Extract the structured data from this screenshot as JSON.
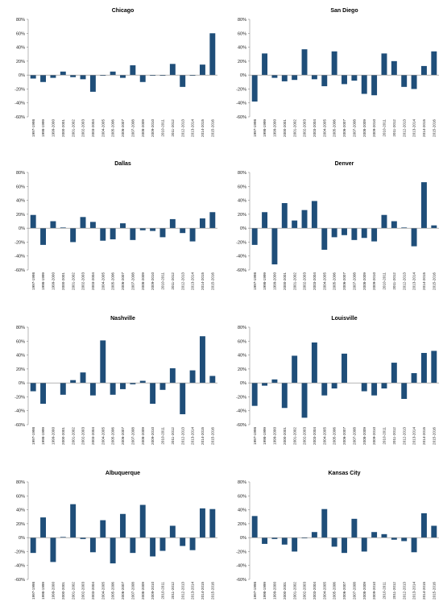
{
  "chart_data": [
    {
      "type": "bar",
      "title": "Chicago",
      "color": "#1f4e79",
      "categories": [
        "1997-1998",
        "1998-1999",
        "1999-2000",
        "2000-2001",
        "2001-2002",
        "2002-2003",
        "2003-2004",
        "2004-2005",
        "2005-2006",
        "2006-2007",
        "2007-2008",
        "2008-2009",
        "2009-2010",
        "2010-2011",
        "2011-2012",
        "2012-2013",
        "2013-2014",
        "2014-2015",
        "2015-2016"
      ],
      "values": [
        -5,
        -10,
        -4,
        5,
        -3,
        -6,
        -24,
        -1,
        5,
        -4,
        14,
        -10,
        -1,
        -1,
        16,
        -17,
        -1,
        15,
        60
      ],
      "ylim": [
        -60,
        80
      ],
      "yticks": [
        {
          "value": -60,
          "label": "-60%"
        },
        {
          "value": -40,
          "label": "-40%"
        },
        {
          "value": -20,
          "label": "-20%"
        },
        {
          "value": 0,
          "label": "0%"
        },
        {
          "value": 20,
          "label": "20%"
        },
        {
          "value": 40,
          "label": "40%"
        },
        {
          "value": 60,
          "label": "60%"
        },
        {
          "value": 80,
          "label": "80%"
        }
      ]
    },
    {
      "type": "bar",
      "title": "San Diego",
      "color": "#1f4e79",
      "categories": [
        "1997-1998",
        "1998-1999",
        "1999-2000",
        "2000-2001",
        "2001-2002",
        "2002-2003",
        "2003-2004",
        "2004-2005",
        "2005-2006",
        "2006-2007",
        "2007-2008",
        "2008-2009",
        "2009-2010",
        "2010-2011",
        "2011-2012",
        "2012-2013",
        "2013-2014",
        "2014-2015",
        "2015-2016"
      ],
      "values": [
        -38,
        31,
        -4,
        -9,
        -7,
        37,
        -6,
        -16,
        34,
        -13,
        -8,
        -27,
        -29,
        31,
        20,
        -17,
        -20,
        13,
        34
      ],
      "ylim": [
        -60,
        80
      ],
      "yticks": [
        {
          "value": -60,
          "label": "-60%"
        },
        {
          "value": -40,
          "label": "-40%"
        },
        {
          "value": -20,
          "label": "-20%"
        },
        {
          "value": 0,
          "label": "0%"
        },
        {
          "value": 20,
          "label": "20%"
        },
        {
          "value": 40,
          "label": "40%"
        },
        {
          "value": 60,
          "label": "60%"
        },
        {
          "value": 80,
          "label": "80%"
        }
      ]
    },
    {
      "type": "bar",
      "title": "Dallas",
      "color": "#1f4e79",
      "categories": [
        "1997-1998",
        "1998-1999",
        "1999-2000",
        "2000-2001",
        "2001-2002",
        "2002-2003",
        "2003-2004",
        "2004-2005",
        "2005-2006",
        "2006-2007",
        "2007-2008",
        "2008-2009",
        "2009-2010",
        "2010-2011",
        "2011-2012",
        "2012-2013",
        "2013-2014",
        "2014-2015",
        "2015-2016"
      ],
      "values": [
        19,
        -24,
        10,
        1,
        -20,
        16,
        9,
        -18,
        -16,
        7,
        -17,
        -3,
        -4,
        -13,
        13,
        -7,
        -19,
        14,
        23
      ],
      "ylim": [
        -60,
        80
      ],
      "yticks": [
        {
          "value": -60,
          "label": "-60%"
        },
        {
          "value": -40,
          "label": "-40%"
        },
        {
          "value": -20,
          "label": "-20%"
        },
        {
          "value": 0,
          "label": "0%"
        },
        {
          "value": 20,
          "label": "20%"
        },
        {
          "value": 40,
          "label": "40%"
        },
        {
          "value": 60,
          "label": "60%"
        },
        {
          "value": 80,
          "label": "80%"
        }
      ]
    },
    {
      "type": "bar",
      "title": "Denver",
      "color": "#1f4e79",
      "categories": [
        "1997-1998",
        "1998-1999",
        "1999-2000",
        "2000-2001",
        "2001-2002",
        "2002-2003",
        "2003-2004",
        "2004-2005",
        "2005-2006",
        "2006-2007",
        "2007-2008",
        "2008-2009",
        "2009-2010",
        "2010-2011",
        "2011-2012",
        "2012-2013",
        "2013-2014",
        "2014-2015",
        "2015-2016"
      ],
      "values": [
        -24,
        23,
        -52,
        36,
        11,
        26,
        39,
        -31,
        -13,
        -10,
        -17,
        -14,
        -19,
        19,
        10,
        1,
        -26,
        66,
        4
      ],
      "ylim": [
        -60,
        80
      ],
      "yticks": [
        {
          "value": -60,
          "label": "-60%"
        },
        {
          "value": -40,
          "label": "-40%"
        },
        {
          "value": -20,
          "label": "-20%"
        },
        {
          "value": 0,
          "label": "0%"
        },
        {
          "value": 20,
          "label": "20%"
        },
        {
          "value": 40,
          "label": "40%"
        },
        {
          "value": 60,
          "label": "60%"
        },
        {
          "value": 80,
          "label": "80%"
        }
      ]
    },
    {
      "type": "bar",
      "title": "Nashville",
      "color": "#1f4e79",
      "categories": [
        "1997-1998",
        "1998-1999",
        "1999-2000",
        "2000-2001",
        "2001-2002",
        "2002-2003",
        "2003-2004",
        "2004-2005",
        "2005-2006",
        "2006-2007",
        "2007-2008",
        "2008-2009",
        "2009-2010",
        "2010-2011",
        "2011-2012",
        "2012-2013",
        "2013-2014",
        "2014-2015",
        "2015-2016"
      ],
      "values": [
        -12,
        -30,
        0,
        -17,
        4,
        15,
        -18,
        61,
        -17,
        -9,
        -2,
        3,
        -30,
        -10,
        21,
        -45,
        18,
        67,
        10
      ],
      "ylim": [
        -60,
        80
      ],
      "yticks": [
        {
          "value": -60,
          "label": "-60%"
        },
        {
          "value": -40,
          "label": "-40%"
        },
        {
          "value": -20,
          "label": "-20%"
        },
        {
          "value": 0,
          "label": "0%"
        },
        {
          "value": 20,
          "label": "20%"
        },
        {
          "value": 40,
          "label": "40%"
        },
        {
          "value": 60,
          "label": "60%"
        },
        {
          "value": 80,
          "label": "80%"
        }
      ]
    },
    {
      "type": "bar",
      "title": "Louisville",
      "color": "#1f4e79",
      "categories": [
        "1997-1998",
        "1998-1999",
        "1999-2000",
        "2000-2001",
        "2001-2002",
        "2002-2003",
        "2003-2004",
        "2004-2005",
        "2005-2006",
        "2006-2007",
        "2007-2008",
        "2008-2009",
        "2009-2010",
        "2010-2011",
        "2011-2012",
        "2012-2013",
        "2013-2014",
        "2014-2015",
        "2015-2016"
      ],
      "values": [
        -33,
        -4,
        5,
        -36,
        39,
        -50,
        58,
        -18,
        -8,
        42,
        0,
        -12,
        -18,
        -8,
        29,
        -23,
        14,
        43,
        46
      ],
      "ylim": [
        -60,
        80
      ],
      "yticks": [
        {
          "value": -60,
          "label": "-60%"
        },
        {
          "value": -40,
          "label": "-40%"
        },
        {
          "value": -20,
          "label": "-20%"
        },
        {
          "value": 0,
          "label": "0%"
        },
        {
          "value": 20,
          "label": "20%"
        },
        {
          "value": 40,
          "label": "40%"
        },
        {
          "value": 60,
          "label": "60%"
        },
        {
          "value": 80,
          "label": "80%"
        }
      ]
    },
    {
      "type": "bar",
      "title": "Albuquerque",
      "color": "#1f4e79",
      "categories": [
        "1997-1998",
        "1998-1999",
        "1999-2000",
        "2000-2001",
        "2001-2002",
        "2002-2003",
        "2003-2004",
        "2004-2005",
        "2005-2006",
        "2006-2007",
        "2007-2008",
        "2008-2009",
        "2009-2010",
        "2010-2011",
        "2011-2012",
        "2012-2013",
        "2013-2014",
        "2014-2015",
        "2015-2016"
      ],
      "values": [
        -22,
        29,
        -35,
        1,
        48,
        -2,
        -21,
        25,
        -37,
        34,
        -22,
        47,
        -27,
        -19,
        17,
        -12,
        -18,
        42,
        41
      ],
      "ylim": [
        -60,
        80
      ],
      "yticks": [
        {
          "value": -60,
          "label": "-60%"
        },
        {
          "value": -40,
          "label": "-40%"
        },
        {
          "value": -20,
          "label": "-20%"
        },
        {
          "value": 0,
          "label": "0%"
        },
        {
          "value": 20,
          "label": "20%"
        },
        {
          "value": 40,
          "label": "40%"
        },
        {
          "value": 60,
          "label": "60%"
        },
        {
          "value": 80,
          "label": "80%"
        }
      ]
    },
    {
      "type": "bar",
      "title": "Kansas City",
      "color": "#1f4e79",
      "categories": [
        "1997-1998",
        "1998-1999",
        "1999-2000",
        "2000-2001",
        "2001-2002",
        "2002-2003",
        "2003-2004",
        "2004-2005",
        "2005-2006",
        "2006-2007",
        "2007-2008",
        "2008-2009",
        "2009-2010",
        "2010-2011",
        "2011-2012",
        "2012-2013",
        "2013-2014",
        "2014-2015",
        "2015-2016"
      ],
      "values": [
        31,
        -9,
        -2,
        -10,
        -20,
        -1,
        8,
        41,
        -13,
        -22,
        27,
        -20,
        8,
        5,
        -3,
        -5,
        -21,
        35,
        17
      ],
      "ylim": [
        -60,
        80
      ],
      "yticks": [
        {
          "value": -60,
          "label": "-60%"
        },
        {
          "value": -40,
          "label": "-40%"
        },
        {
          "value": -20,
          "label": "-20%"
        },
        {
          "value": 0,
          "label": "0%"
        },
        {
          "value": 20,
          "label": "20%"
        },
        {
          "value": 40,
          "label": "40%"
        },
        {
          "value": 60,
          "label": "60%"
        },
        {
          "value": 80,
          "label": "80%"
        }
      ]
    }
  ]
}
